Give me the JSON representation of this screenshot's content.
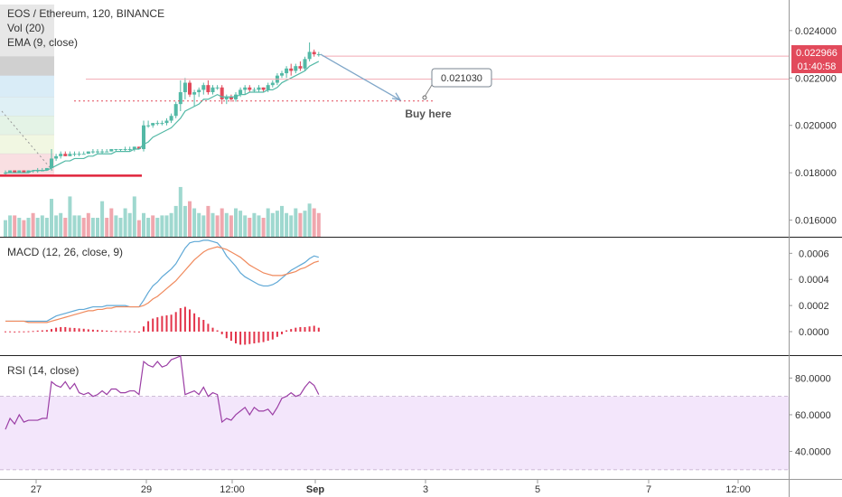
{
  "header": {
    "symbol_line": "EOS / Ethereum, 120, BINANCE",
    "vol_label": "Vol (20)",
    "ema_label": "EMA (9, close)"
  },
  "colors": {
    "up": "#53b9a6",
    "down": "#e24a5b",
    "vol_up": "#9fd8cf",
    "vol_down": "#f0a7ae",
    "macd": "#5fa8d6",
    "signal": "#f08a5d",
    "hist": "#e3344a",
    "rsi": "#9b3ea5",
    "rsi_band": "#f3e6fb",
    "support": "#e0243c",
    "arrow": "#7fa6c8"
  },
  "annotations": {
    "target_label": "0.021030",
    "buy_text": "Buy here",
    "price_tag": "0.022966",
    "time_tag": "01:40:58"
  },
  "panes": {
    "macd_title": "MACD (12, 26, close, 9)",
    "rsi_title": "RSI (14, close)"
  },
  "chart_data": [
    {
      "type": "candlestick",
      "title": "EOS / Ethereum, 120, BINANCE",
      "x_tick_labels": [
        "27",
        "29",
        "12:00",
        "Sep",
        "3",
        "5",
        "7",
        "12:00"
      ],
      "y_tick_labels": [
        "0.024000",
        "0.022000",
        "0.020000",
        "0.018000",
        "0.016000"
      ],
      "ylim": [
        0.0153,
        0.0251
      ],
      "candles": [
        [
          0.018,
          0.0181,
          0.0179,
          0.018
        ],
        [
          0.018,
          0.0181,
          0.018,
          0.0181
        ],
        [
          0.0181,
          0.0181,
          0.018,
          0.018
        ],
        [
          0.018,
          0.0181,
          0.018,
          0.0181
        ],
        [
          0.0181,
          0.0181,
          0.018,
          0.018
        ],
        [
          0.018,
          0.0181,
          0.018,
          0.0181
        ],
        [
          0.0181,
          0.0181,
          0.018,
          0.0181
        ],
        [
          0.0181,
          0.0182,
          0.018,
          0.0181
        ],
        [
          0.0181,
          0.0182,
          0.0181,
          0.0181
        ],
        [
          0.0181,
          0.0182,
          0.0181,
          0.0182
        ],
        [
          0.0182,
          0.019,
          0.0181,
          0.0186
        ],
        [
          0.0186,
          0.0188,
          0.0185,
          0.0187
        ],
        [
          0.0187,
          0.0189,
          0.0186,
          0.0188
        ],
        [
          0.0188,
          0.0189,
          0.0187,
          0.0187
        ],
        [
          0.0187,
          0.0189,
          0.0187,
          0.0188
        ],
        [
          0.0188,
          0.0189,
          0.0187,
          0.0188
        ],
        [
          0.0188,
          0.0189,
          0.0187,
          0.0188
        ],
        [
          0.0188,
          0.0189,
          0.0188,
          0.0188
        ],
        [
          0.0188,
          0.0189,
          0.0188,
          0.0189
        ],
        [
          0.0189,
          0.019,
          0.0188,
          0.0189
        ],
        [
          0.0189,
          0.019,
          0.0188,
          0.0189
        ],
        [
          0.0189,
          0.019,
          0.0188,
          0.0189
        ],
        [
          0.0189,
          0.019,
          0.0189,
          0.0189
        ],
        [
          0.0189,
          0.019,
          0.0189,
          0.019
        ],
        [
          0.019,
          0.019,
          0.0189,
          0.019
        ],
        [
          0.019,
          0.019,
          0.0189,
          0.019
        ],
        [
          0.019,
          0.0191,
          0.0189,
          0.019
        ],
        [
          0.019,
          0.0191,
          0.0189,
          0.019
        ],
        [
          0.019,
          0.0191,
          0.0189,
          0.0191
        ],
        [
          0.0191,
          0.0191,
          0.019,
          0.019
        ],
        [
          0.019,
          0.0202,
          0.0189,
          0.02
        ],
        [
          0.02,
          0.0202,
          0.0199,
          0.02
        ],
        [
          0.02,
          0.0201,
          0.0199,
          0.0201
        ],
        [
          0.0201,
          0.0202,
          0.02,
          0.0201
        ],
        [
          0.0201,
          0.0202,
          0.02,
          0.0201
        ],
        [
          0.0201,
          0.0203,
          0.02,
          0.0202
        ],
        [
          0.0202,
          0.0205,
          0.0201,
          0.0204
        ],
        [
          0.0204,
          0.021,
          0.0203,
          0.0209
        ],
        [
          0.0209,
          0.0219,
          0.0206,
          0.0214
        ],
        [
          0.0214,
          0.022,
          0.0211,
          0.0218
        ],
        [
          0.0218,
          0.0219,
          0.0212,
          0.0213
        ],
        [
          0.0213,
          0.0215,
          0.0208,
          0.0214
        ],
        [
          0.0214,
          0.0216,
          0.0212,
          0.0215
        ],
        [
          0.0215,
          0.0218,
          0.0213,
          0.0217
        ],
        [
          0.0217,
          0.0219,
          0.0213,
          0.0214
        ],
        [
          0.0214,
          0.0217,
          0.0213,
          0.0216
        ],
        [
          0.0216,
          0.0217,
          0.0215,
          0.0216
        ],
        [
          0.0216,
          0.0217,
          0.0209,
          0.0211
        ],
        [
          0.0211,
          0.0213,
          0.0209,
          0.0212
        ],
        [
          0.0212,
          0.0213,
          0.021,
          0.0211
        ],
        [
          0.0211,
          0.0214,
          0.021,
          0.0213
        ],
        [
          0.0213,
          0.0216,
          0.0212,
          0.0215
        ],
        [
          0.0215,
          0.0217,
          0.0213,
          0.0216
        ],
        [
          0.0216,
          0.0217,
          0.0214,
          0.0215
        ],
        [
          0.0215,
          0.0216,
          0.0214,
          0.0215
        ],
        [
          0.0215,
          0.0217,
          0.0214,
          0.0216
        ],
        [
          0.0216,
          0.0216,
          0.0214,
          0.0215
        ],
        [
          0.0215,
          0.0218,
          0.0214,
          0.0217
        ],
        [
          0.0217,
          0.0219,
          0.0216,
          0.0218
        ],
        [
          0.0218,
          0.0222,
          0.0217,
          0.0221
        ],
        [
          0.0221,
          0.0223,
          0.022,
          0.0222
        ],
        [
          0.0222,
          0.0225,
          0.022,
          0.0224
        ],
        [
          0.0224,
          0.0226,
          0.0221,
          0.0223
        ],
        [
          0.0223,
          0.0226,
          0.0222,
          0.0225
        ],
        [
          0.0225,
          0.0227,
          0.0223,
          0.0224
        ],
        [
          0.0224,
          0.0229,
          0.0223,
          0.0228
        ],
        [
          0.0228,
          0.0235,
          0.0227,
          0.0231
        ],
        [
          0.0231,
          0.0232,
          0.0229,
          0.023
        ],
        [
          0.023,
          0.0231,
          0.0229,
          0.023
        ]
      ],
      "ema": [
        0.018,
        0.018,
        0.018,
        0.018,
        0.018,
        0.018,
        0.0181,
        0.0181,
        0.0181,
        0.0181,
        0.0182,
        0.0183,
        0.0184,
        0.0185,
        0.0185,
        0.0186,
        0.0186,
        0.0186,
        0.0187,
        0.0187,
        0.0188,
        0.0188,
        0.0188,
        0.0188,
        0.0189,
        0.0189,
        0.0189,
        0.0189,
        0.019,
        0.019,
        0.0192,
        0.0193,
        0.0195,
        0.0196,
        0.0197,
        0.0198,
        0.0199,
        0.0201,
        0.0203,
        0.0206,
        0.0207,
        0.0208,
        0.0209,
        0.0211,
        0.0211,
        0.0212,
        0.0213,
        0.0212,
        0.0212,
        0.0212,
        0.0212,
        0.0213,
        0.0213,
        0.0214,
        0.0214,
        0.0214,
        0.0214,
        0.0215,
        0.0215,
        0.0216,
        0.0218,
        0.0219,
        0.022,
        0.0221,
        0.0222,
        0.0223,
        0.0225,
        0.0226,
        0.0227
      ],
      "volume": [
        [
          0.016,
          1
        ],
        [
          0.0162,
          1
        ],
        [
          0.0162,
          0
        ],
        [
          0.0161,
          1
        ],
        [
          0.016,
          0
        ],
        [
          0.0161,
          1
        ],
        [
          0.0163,
          0
        ],
        [
          0.0161,
          1
        ],
        [
          0.0162,
          1
        ],
        [
          0.0161,
          1
        ],
        [
          0.0169,
          1
        ],
        [
          0.0162,
          1
        ],
        [
          0.0163,
          1
        ],
        [
          0.0161,
          0
        ],
        [
          0.017,
          1
        ],
        [
          0.0162,
          1
        ],
        [
          0.0162,
          1
        ],
        [
          0.0161,
          0
        ],
        [
          0.0163,
          0
        ],
        [
          0.0161,
          1
        ],
        [
          0.0161,
          1
        ],
        [
          0.0168,
          1
        ],
        [
          0.0161,
          0
        ],
        [
          0.0165,
          0
        ],
        [
          0.0162,
          1
        ],
        [
          0.0161,
          1
        ],
        [
          0.0165,
          1
        ],
        [
          0.0163,
          1
        ],
        [
          0.017,
          1
        ],
        [
          0.016,
          0
        ],
        [
          0.0163,
          1
        ],
        [
          0.0161,
          1
        ],
        [
          0.0162,
          0
        ],
        [
          0.0161,
          1
        ],
        [
          0.0162,
          1
        ],
        [
          0.0162,
          1
        ],
        [
          0.0163,
          1
        ],
        [
          0.0166,
          1
        ],
        [
          0.0174,
          1
        ],
        [
          0.0166,
          1
        ],
        [
          0.0168,
          0
        ],
        [
          0.0165,
          1
        ],
        [
          0.0163,
          1
        ],
        [
          0.0162,
          1
        ],
        [
          0.0166,
          0
        ],
        [
          0.0163,
          1
        ],
        [
          0.0162,
          0
        ],
        [
          0.0165,
          0
        ],
        [
          0.0163,
          1
        ],
        [
          0.0162,
          0
        ],
        [
          0.0165,
          1
        ],
        [
          0.0164,
          1
        ],
        [
          0.0162,
          1
        ],
        [
          0.0161,
          0
        ],
        [
          0.0163,
          1
        ],
        [
          0.0162,
          1
        ],
        [
          0.0161,
          0
        ],
        [
          0.0165,
          1
        ],
        [
          0.0163,
          1
        ],
        [
          0.0164,
          1
        ],
        [
          0.0166,
          1
        ],
        [
          0.0163,
          1
        ],
        [
          0.0162,
          1
        ],
        [
          0.0165,
          1
        ],
        [
          0.0163,
          0
        ],
        [
          0.0164,
          1
        ],
        [
          0.0167,
          1
        ],
        [
          0.0165,
          0
        ],
        [
          0.0163,
          0
        ]
      ],
      "support_level": 0.01788,
      "projection": {
        "from": 0.023,
        "to": 0.02103
      }
    },
    {
      "type": "line",
      "title": "MACD (12, 26, close, 9)",
      "y_tick_labels": [
        "0.0006",
        "0.0004",
        "0.0002",
        "0.0000"
      ],
      "ylim": [
        -0.00018,
        0.00072
      ],
      "series": [
        {
          "key": "macd",
          "values": [
            8e-05,
            8e-05,
            8e-05,
            8e-05,
            8e-05,
            8e-05,
            8e-05,
            8e-05,
            8e-05,
            8e-05,
            0.0001,
            0.00012,
            0.00013,
            0.00014,
            0.00015,
            0.00016,
            0.00017,
            0.00017,
            0.00018,
            0.00019,
            0.00019,
            0.00019,
            0.0002,
            0.0002,
            0.0002,
            0.0002,
            0.0002,
            0.00019,
            0.00019,
            0.00019,
            0.00024,
            0.0003,
            0.00035,
            0.00038,
            0.00042,
            0.00045,
            0.00048,
            0.00052,
            0.00058,
            0.00064,
            0.00068,
            0.00069,
            0.00069,
            0.0007,
            0.0007,
            0.00069,
            0.00068,
            0.00064,
            0.00058,
            0.00054,
            0.0005,
            0.00045,
            0.00042,
            0.0004,
            0.00038,
            0.00036,
            0.00035,
            0.00035,
            0.00036,
            0.00038,
            0.00041,
            0.00044,
            0.00047,
            0.00049,
            0.00051,
            0.00053,
            0.00056,
            0.00058,
            0.00057
          ]
        },
        {
          "key": "signal",
          "values": [
            8e-05,
            8e-05,
            8e-05,
            8e-05,
            8e-05,
            7e-05,
            7e-05,
            7e-05,
            7e-05,
            7e-05,
            8e-05,
            9e-05,
            0.0001,
            0.00011,
            0.00012,
            0.00013,
            0.00014,
            0.00015,
            0.00016,
            0.00016,
            0.00017,
            0.00017,
            0.00018,
            0.00018,
            0.00019,
            0.00019,
            0.00019,
            0.00019,
            0.00019,
            0.00019,
            0.0002,
            0.00022,
            0.00025,
            0.00027,
            0.0003,
            0.00033,
            0.00036,
            0.00039,
            0.00043,
            0.00047,
            0.00051,
            0.00055,
            0.00058,
            0.00061,
            0.00063,
            0.00064,
            0.00065,
            0.00064,
            0.00063,
            0.00061,
            0.00059,
            0.00057,
            0.00054,
            0.00051,
            0.00049,
            0.00047,
            0.00045,
            0.00044,
            0.00043,
            0.00043,
            0.00043,
            0.00044,
            0.00045,
            0.00046,
            0.00048,
            0.00049,
            0.00051,
            0.00053,
            0.00054
          ]
        }
      ],
      "histogram": [
        2e-06,
        2e-06,
        1e-06,
        2e-06,
        2e-06,
        3e-06,
        5e-06,
        8e-06,
        1e-05,
        1.2e-05,
        2e-05,
        3e-05,
        3.5e-05,
        3.5e-05,
        3e-05,
        2.8e-05,
        2.5e-05,
        2.2e-05,
        1.8e-05,
        1.5e-05,
        1.2e-05,
        1e-05,
        8e-06,
        6e-06,
        5e-06,
        4e-06,
        4e-06,
        3e-06,
        2e-06,
        1e-06,
        4e-05,
        8e-05,
        0.0001,
        0.00011,
        0.00012,
        0.000125,
        0.00013,
        0.00015,
        0.00018,
        0.00019,
        0.00017,
        0.00014,
        0.00011,
        9e-05,
        6e-05,
        3e-05,
        1e-05,
        -2e-05,
        -5e-05,
        -7e-05,
        -9e-05,
        -0.0001,
        -0.0001,
        -9.5e-05,
        -9e-05,
        -8.5e-05,
        -8e-05,
        -7e-05,
        -6e-05,
        -4e-05,
        -2e-05,
        1e-05,
        2e-05,
        3e-05,
        3.5e-05,
        3.5e-05,
        4e-05,
        4.5e-05,
        3e-05
      ]
    },
    {
      "type": "line",
      "title": "RSI (14, close)",
      "y_tick_labels": [
        "80.0000",
        "60.0000",
        "40.0000"
      ],
      "ylim": [
        25,
        92
      ],
      "band": [
        30,
        70
      ],
      "series": [
        {
          "key": "rsi",
          "values": [
            52,
            58,
            55,
            60,
            56,
            57,
            57,
            57,
            58,
            58,
            78,
            76,
            75,
            78,
            74,
            77,
            72,
            71,
            72,
            70,
            71,
            73,
            71,
            74,
            74,
            72,
            72,
            73,
            73,
            71,
            89,
            87,
            86,
            89,
            86,
            87,
            90,
            91,
            92,
            71,
            72,
            73,
            71,
            75,
            70,
            72,
            71,
            56,
            58,
            57,
            60,
            62,
            64,
            60,
            64,
            62,
            62,
            63,
            60,
            64,
            69,
            70,
            72,
            70,
            71,
            75,
            78,
            76,
            71
          ]
        }
      ]
    }
  ]
}
